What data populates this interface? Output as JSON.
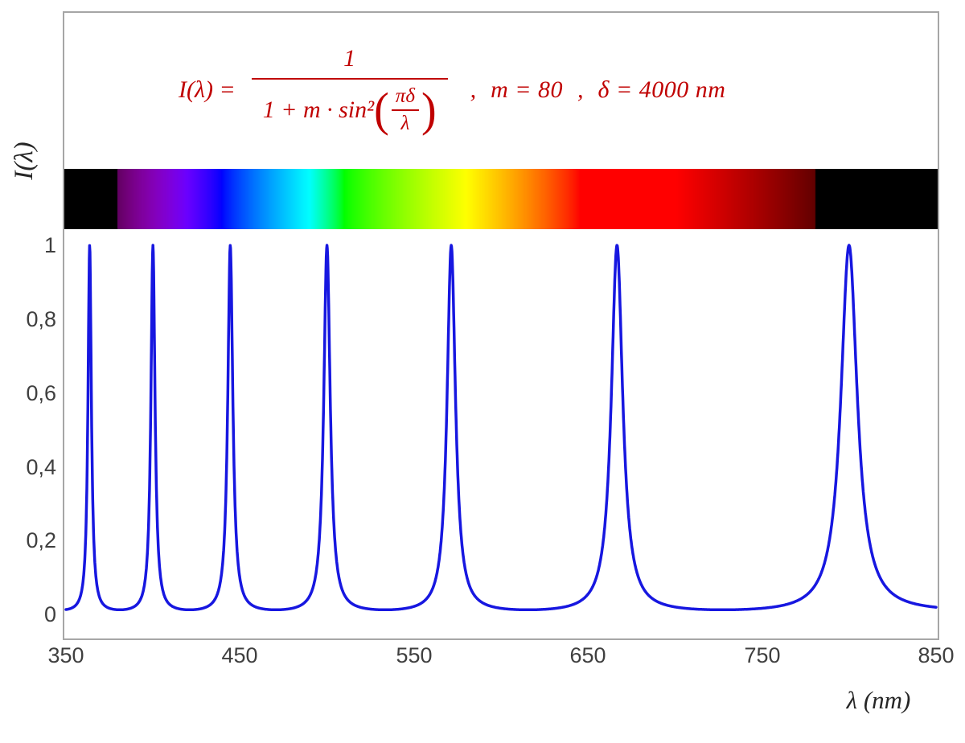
{
  "figure": {
    "background": "#ffffff",
    "border_color": "#a6a6a6"
  },
  "formula": {
    "color": "#c00000",
    "lhs": "I(λ) =",
    "numerator": "1",
    "denom_prefix": "1 + m · sin²",
    "open_paren": "(",
    "inner_numerator": "πδ",
    "inner_denominator": "λ",
    "close_paren": ")",
    "comma1": ",",
    "param_m": "m = 80",
    "comma2": ",",
    "param_delta": "δ = 4000 nm"
  },
  "axes": {
    "y_label": "I(λ)",
    "x_label": "λ  (nm)",
    "y_ticks": [
      "1",
      "0,8",
      "0,6",
      "0,4",
      "0,2",
      "0"
    ],
    "x_ticks": [
      "350",
      "450",
      "550",
      "650",
      "750",
      "850"
    ],
    "tick_color": "#3f3f3f"
  },
  "chart_data": {
    "type": "line",
    "title": "",
    "xlabel": "λ (nm)",
    "ylabel": "I(λ)",
    "function": "I(lambda) = 1 / (1 + m * sin^2(pi * delta / lambda))",
    "parameters": {
      "m": 80,
      "delta_nm": 4000
    },
    "x_range_nm": [
      350,
      850
    ],
    "y_range": [
      0,
      1
    ],
    "x_ticks_nm": [
      350,
      450,
      550,
      650,
      750,
      850
    ],
    "y_tick_values": [
      0,
      0.2,
      0.4,
      0.6,
      0.8,
      1
    ],
    "peak_wavelengths_nm": [
      363.64,
      400,
      444.44,
      500,
      571.43,
      666.67,
      800
    ],
    "peak_value": 1,
    "baseline_value": 0.0123,
    "grid": false,
    "legend": false,
    "series": [
      {
        "name": "I(λ)",
        "color": "#1717e0",
        "stroke_width": 3.5
      }
    ],
    "spectrum_bar": {
      "range_nm": [
        350,
        850
      ],
      "visible_range_nm": [
        380,
        780
      ],
      "outside_color": "#000000"
    }
  }
}
